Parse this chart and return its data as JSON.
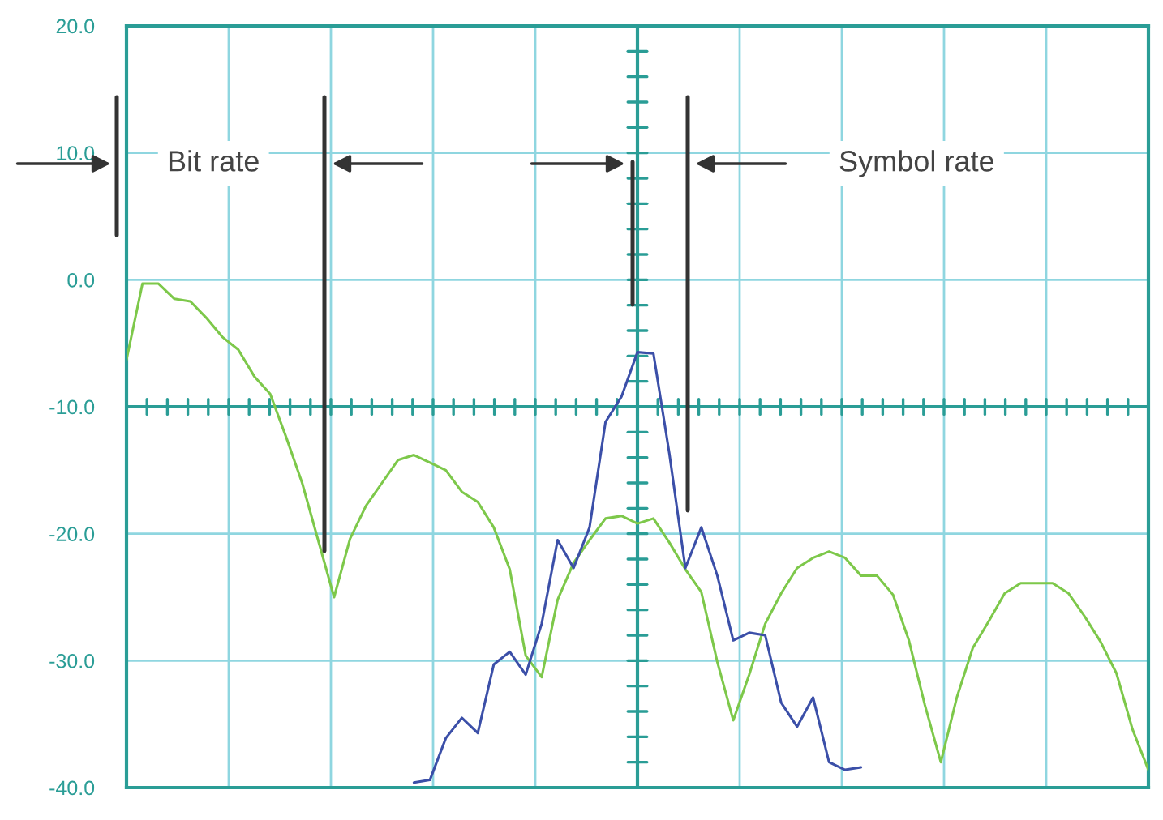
{
  "chart_data": {
    "type": "line",
    "categories": [
      null,
      null,
      null,
      null,
      null,
      null,
      null,
      null,
      null,
      null,
      null,
      null,
      null,
      null,
      null,
      null,
      null,
      null,
      null,
      null,
      null,
      null,
      null,
      null,
      null,
      null,
      null,
      null,
      null,
      null,
      null,
      null,
      null,
      null,
      null,
      null,
      null,
      null,
      null,
      null,
      null,
      null,
      null,
      null,
      null,
      null,
      null,
      null,
      null,
      null,
      null,
      null,
      null,
      null,
      null,
      null,
      null,
      null,
      null,
      null,
      null,
      null,
      null,
      null,
      null
    ],
    "series": [
      {
        "color": "#7dc84a",
        "values": [
          -6.3,
          -0.3,
          -0.3,
          -1.5,
          -1.7,
          -3.0,
          -4.5,
          -5.5,
          -7.6,
          -9.0,
          -12.4,
          -16.0,
          -20.5,
          -25.0,
          -20.4,
          -17.8,
          -16.0,
          -14.2,
          -13.8,
          -14.4,
          -15.0,
          -16.7,
          -17.5,
          -19.5,
          -22.8,
          -29.6,
          -31.3,
          -25.2,
          -22.3,
          -20.5,
          -18.8,
          -18.6,
          -19.2,
          -18.8,
          -20.7,
          -22.8,
          -24.6,
          -30.1,
          -34.7,
          -31.1,
          -27.1,
          -24.7,
          -22.7,
          -21.9,
          -21.4,
          -21.9,
          -23.3,
          -23.3,
          -24.8,
          -28.4,
          -33.5,
          -38.0,
          -32.9,
          -29.0,
          -26.9,
          -24.7,
          -23.9,
          -23.9,
          -23.9,
          -24.7,
          -26.5,
          -28.5,
          -31.0,
          -35.4,
          -38.6
        ]
      },
      {
        "color": "#3b4fa8",
        "values": [
          null,
          null,
          null,
          null,
          null,
          null,
          null,
          null,
          null,
          null,
          null,
          null,
          null,
          null,
          null,
          null,
          null,
          null,
          -39.6,
          -39.4,
          -36.1,
          -34.5,
          -35.7,
          -30.3,
          -29.3,
          -31.1,
          -27.1,
          -20.5,
          -22.7,
          -19.5,
          -11.2,
          -9.2,
          -5.7,
          -5.8,
          -13.7,
          -22.7,
          -19.5,
          -23.3,
          -28.4,
          -27.8,
          -28.0,
          -33.3,
          -35.2,
          -32.9,
          -38.0,
          -38.6,
          -38.4,
          null,
          null,
          null,
          null,
          null,
          null,
          null,
          null,
          null,
          null,
          null,
          null,
          null,
          null,
          null,
          null,
          null,
          null
        ]
      }
    ],
    "ylim": [
      -40,
      20
    ],
    "yticks": [
      {
        "value": 20,
        "label": "20.0"
      },
      {
        "value": 10,
        "label": "10.0"
      },
      {
        "value": 0,
        "label": "0.0"
      },
      {
        "value": -10,
        "label": "-10.0"
      },
      {
        "value": -20,
        "label": "-20.0"
      },
      {
        "value": -30,
        "label": "-30.0"
      },
      {
        "value": -40,
        "label": "-40.0"
      }
    ],
    "tick_labels": "y",
    "grid": true,
    "annotations": [
      "Bit rate",
      "Symbol rate"
    ]
  }
}
